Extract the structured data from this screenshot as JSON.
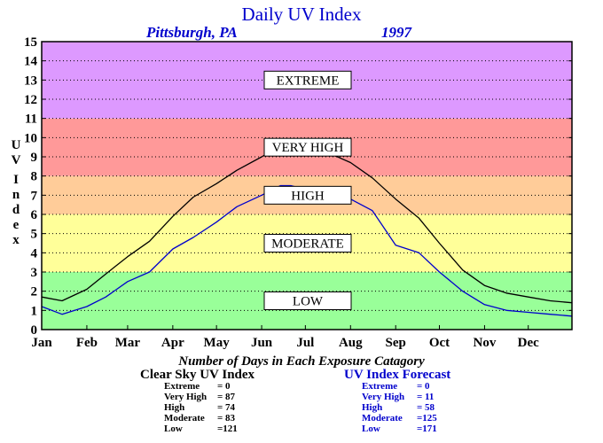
{
  "chart_data": {
    "type": "line",
    "title": "Daily UV Index",
    "subtitle_location": "Pittsburgh, PA",
    "subtitle_year": "1997",
    "ylabel": "UV Index",
    "ylim": [
      0,
      15
    ],
    "yticks": [
      "0",
      "1",
      "2",
      "3",
      "4",
      "5",
      "6",
      "7",
      "8",
      "9",
      "10",
      "11",
      "12",
      "13",
      "14",
      "15"
    ],
    "xlim": [
      1,
      365
    ],
    "months": [
      {
        "label": "Jan",
        "day": 1
      },
      {
        "label": "Feb",
        "day": 32
      },
      {
        "label": "Mar",
        "day": 60
      },
      {
        "label": "Apr",
        "day": 91
      },
      {
        "label": "May",
        "day": 121
      },
      {
        "label": "Jun",
        "day": 152
      },
      {
        "label": "Jul",
        "day": 182
      },
      {
        "label": "Aug",
        "day": 213
      },
      {
        "label": "Sep",
        "day": 244
      },
      {
        "label": "Oct",
        "day": 274
      },
      {
        "label": "Nov",
        "day": 305
      },
      {
        "label": "Dec",
        "day": 335
      }
    ],
    "grid": true,
    "bands": [
      {
        "label": "LOW",
        "from": 0,
        "to": 3,
        "color": "#99ff99"
      },
      {
        "label": "MODERATE",
        "from": 3,
        "to": 6,
        "color": "#ffff99"
      },
      {
        "label": "HIGH",
        "from": 6,
        "to": 8,
        "color": "#ffcc99"
      },
      {
        "label": "VERY HIGH",
        "from": 8,
        "to": 11,
        "color": "#ff9999"
      },
      {
        "label": "EXTREME",
        "from": 11,
        "to": 15,
        "color": "#dd99ff"
      }
    ],
    "series": [
      {
        "name": "Clear Sky UV Index",
        "color": "#000000",
        "points": [
          [
            1,
            1.7
          ],
          [
            15,
            1.5
          ],
          [
            32,
            2.1
          ],
          [
            45,
            2.9
          ],
          [
            60,
            3.8
          ],
          [
            75,
            4.6
          ],
          [
            91,
            5.9
          ],
          [
            105,
            6.9
          ],
          [
            121,
            7.6
          ],
          [
            135,
            8.3
          ],
          [
            152,
            9.0
          ],
          [
            165,
            9.6
          ],
          [
            172,
            9.8
          ],
          [
            182,
            9.6
          ],
          [
            195,
            9.3
          ],
          [
            213,
            8.7
          ],
          [
            228,
            7.9
          ],
          [
            244,
            6.8
          ],
          [
            260,
            5.8
          ],
          [
            274,
            4.5
          ],
          [
            290,
            3.1
          ],
          [
            305,
            2.3
          ],
          [
            320,
            1.9
          ],
          [
            335,
            1.7
          ],
          [
            350,
            1.5
          ],
          [
            365,
            1.4
          ]
        ]
      },
      {
        "name": "UV Index Forecast",
        "color": "#0000cc",
        "points": [
          [
            1,
            1.2
          ],
          [
            15,
            0.8
          ],
          [
            32,
            1.2
          ],
          [
            45,
            1.7
          ],
          [
            60,
            2.5
          ],
          [
            75,
            3.0
          ],
          [
            91,
            4.2
          ],
          [
            105,
            4.8
          ],
          [
            121,
            5.6
          ],
          [
            135,
            6.4
          ],
          [
            152,
            7.0
          ],
          [
            165,
            7.5
          ],
          [
            172,
            7.5
          ],
          [
            182,
            7.3
          ],
          [
            195,
            7.0
          ],
          [
            213,
            6.8
          ],
          [
            228,
            6.2
          ],
          [
            244,
            4.4
          ],
          [
            260,
            4.0
          ],
          [
            274,
            3.0
          ],
          [
            290,
            2.0
          ],
          [
            305,
            1.3
          ],
          [
            320,
            1.0
          ],
          [
            335,
            0.9
          ],
          [
            350,
            0.8
          ],
          [
            365,
            0.7
          ]
        ]
      }
    ],
    "exposure_caption": "Number of Days in Each Exposure Catagory",
    "summaries": [
      {
        "heading": "Clear Sky UV Index",
        "color": "#000000",
        "rows": [
          {
            "label": "Extreme",
            "value": "=     0"
          },
          {
            "label": "Very High",
            "value": "=  87"
          },
          {
            "label": "High",
            "value": "=  74"
          },
          {
            "label": "Moderate",
            "value": "=  83"
          },
          {
            "label": "Low",
            "value": "=121"
          }
        ]
      },
      {
        "heading": "UV Index Forecast",
        "color": "#0000cc",
        "rows": [
          {
            "label": "Extreme",
            "value": "=     0"
          },
          {
            "label": "Very High",
            "value": "=   11"
          },
          {
            "label": "High",
            "value": "=   58"
          },
          {
            "label": "Moderate",
            "value": "=125"
          },
          {
            "label": "Low",
            "value": "=171"
          }
        ]
      }
    ]
  }
}
